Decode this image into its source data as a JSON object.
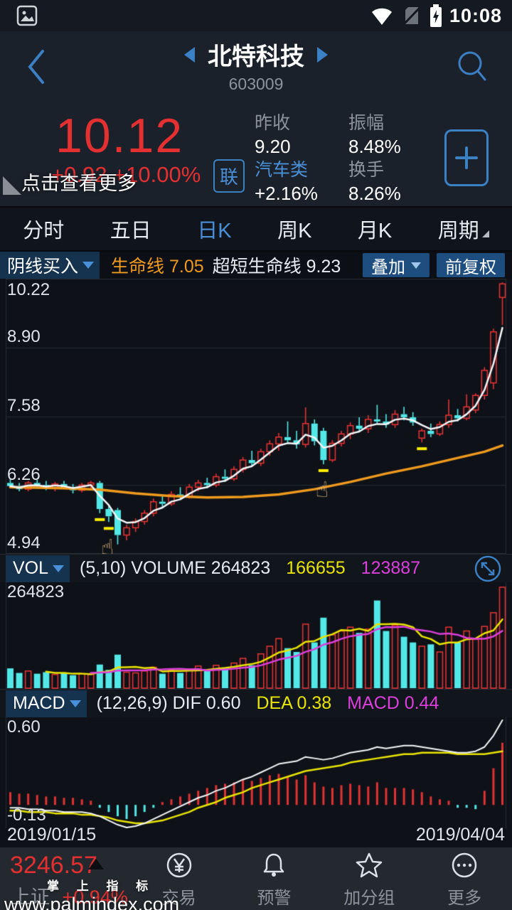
{
  "colors": {
    "up": "#e03232",
    "down": "#53e8e8",
    "orange": "#f09a1e",
    "white_line": "#f4f6f8",
    "yellow": "#e9e400",
    "magenta": "#dd3fdd",
    "grid": "#272d36",
    "signal": "#ffee00",
    "accent_blue": "#4a90d8",
    "price_red": "#e43030"
  },
  "status_bar": {
    "time": "10:08"
  },
  "header": {
    "title": "北特科技",
    "subtitle": "603009"
  },
  "quote": {
    "price": "10.12",
    "change_line": "+0.92 +10.00%",
    "overlay_hint": "点击查看更多",
    "badge": "联",
    "stats": [
      {
        "label": "昨收",
        "value": "9.20"
      },
      {
        "label": "振幅",
        "value": "8.48%"
      },
      {
        "label": "汽车类",
        "value": "+2.16%"
      },
      {
        "label": "换手",
        "value": "8.26%"
      }
    ]
  },
  "tabs": {
    "items": [
      {
        "label": "分时"
      },
      {
        "label": "五日"
      },
      {
        "label": "日K"
      },
      {
        "label": "周K"
      },
      {
        "label": "月K"
      },
      {
        "label": "周期"
      }
    ],
    "active_index": 2
  },
  "indicator_bar": {
    "selector": "阴线买入",
    "item1_label": "生命线",
    "item1_value": "7.05",
    "item2_label": "超短生命线",
    "item2_value": "9.23",
    "overlay_button": "叠加",
    "adjust_button": "前复权"
  },
  "kchart": {
    "y_labels": [
      "10.22",
      "8.90",
      "7.58",
      "6.26",
      "4.94"
    ]
  },
  "vol_panel": {
    "selector": "VOL",
    "params": "(5,10) VOLUME 264823",
    "ma5": "166655",
    "ma10": "123887",
    "y_label": "264823"
  },
  "macd_panel": {
    "selector": "MACD",
    "params": "(12,26,9) DIF 0.60",
    "dea": "DEA 0.38",
    "macd": "MACD 0.44",
    "y_top": "0.60",
    "y_bottom": "-0.13",
    "date_left": "2019/01/15",
    "date_right": "2019/04/04"
  },
  "bottom_nav": {
    "index_value": "3246.57",
    "index_name": "上证",
    "index_change": "+0.94%",
    "items": [
      {
        "label": "交易"
      },
      {
        "label": "预警"
      },
      {
        "label": "加分组"
      },
      {
        "label": "更多"
      }
    ]
  },
  "watermark": {
    "line1": "掌 上 指 标",
    "line2": "www.palmindex.com"
  },
  "chart_data": [
    {
      "type": "candlestick",
      "title": "日K",
      "y_range": [
        4.94,
        10.22
      ],
      "y_ticks": [
        10.22,
        8.9,
        7.58,
        6.26,
        4.94
      ],
      "date_start": "2019/01/15",
      "date_end": "2019/04/04",
      "candles": [
        [
          6.3,
          6.38,
          6.2,
          6.24
        ],
        [
          6.24,
          6.3,
          6.14,
          6.18
        ],
        [
          6.18,
          6.34,
          6.14,
          6.3
        ],
        [
          6.3,
          6.36,
          6.22,
          6.26
        ],
        [
          6.26,
          6.34,
          6.16,
          6.2
        ],
        [
          6.2,
          6.32,
          6.14,
          6.28
        ],
        [
          6.28,
          6.34,
          6.18,
          6.22
        ],
        [
          6.22,
          6.28,
          6.1,
          6.16
        ],
        [
          6.16,
          6.3,
          6.12,
          6.26
        ],
        [
          6.26,
          6.34,
          6.2,
          6.3
        ],
        [
          6.3,
          6.34,
          5.72,
          5.8
        ],
        [
          5.8,
          5.88,
          5.55,
          5.66
        ],
        [
          5.78,
          5.82,
          5.12,
          5.3
        ],
        [
          5.3,
          5.5,
          5.2,
          5.44
        ],
        [
          5.44,
          5.62,
          5.36,
          5.56
        ],
        [
          5.56,
          5.78,
          5.5,
          5.72
        ],
        [
          5.72,
          6.0,
          5.66,
          5.94
        ],
        [
          5.94,
          6.08,
          5.84,
          5.9
        ],
        [
          5.9,
          6.14,
          5.86,
          6.08
        ],
        [
          6.08,
          6.22,
          5.98,
          6.04
        ],
        [
          6.04,
          6.28,
          6.0,
          6.22
        ],
        [
          6.22,
          6.36,
          6.14,
          6.3
        ],
        [
          6.3,
          6.4,
          6.2,
          6.26
        ],
        [
          6.26,
          6.48,
          6.22,
          6.42
        ],
        [
          6.42,
          6.56,
          6.32,
          6.38
        ],
        [
          6.38,
          6.62,
          6.34,
          6.56
        ],
        [
          6.56,
          6.8,
          6.5,
          6.74
        ],
        [
          6.74,
          6.92,
          6.62,
          6.68
        ],
        [
          6.68,
          6.96,
          6.62,
          6.9
        ],
        [
          6.9,
          7.12,
          6.82,
          7.05
        ],
        [
          7.05,
          7.26,
          6.92,
          7.18
        ],
        [
          7.18,
          7.48,
          7.08,
          7.12
        ],
        [
          7.12,
          7.3,
          6.96,
          7.04
        ],
        [
          7.04,
          7.75,
          6.98,
          7.44
        ],
        [
          7.44,
          7.52,
          7.02,
          7.1
        ],
        [
          7.3,
          7.36,
          6.66,
          6.74
        ],
        [
          6.74,
          7.12,
          6.7,
          7.06
        ],
        [
          7.06,
          7.3,
          7.0,
          7.24
        ],
        [
          7.24,
          7.46,
          7.14,
          7.4
        ],
        [
          7.4,
          7.56,
          7.28,
          7.34
        ],
        [
          7.34,
          7.6,
          7.26,
          7.52
        ],
        [
          7.52,
          7.8,
          7.44,
          7.48
        ],
        [
          7.48,
          7.62,
          7.36,
          7.42
        ],
        [
          7.42,
          7.7,
          7.36,
          7.62
        ],
        [
          7.62,
          7.76,
          7.5,
          7.56
        ],
        [
          7.56,
          7.66,
          7.4,
          7.46
        ],
        [
          7.16,
          7.34,
          7.08,
          7.3
        ],
        [
          7.3,
          7.44,
          7.18,
          7.24
        ],
        [
          7.24,
          7.48,
          7.2,
          7.42
        ],
        [
          7.42,
          7.9,
          7.36,
          7.6
        ],
        [
          7.6,
          7.72,
          7.48,
          7.54
        ],
        [
          7.54,
          8.0,
          7.5,
          7.76
        ],
        [
          7.7,
          8.02,
          7.64,
          7.98
        ],
        [
          7.98,
          8.52,
          7.9,
          8.46
        ],
        [
          8.22,
          9.26,
          8.1,
          9.2
        ],
        [
          9.86,
          10.15,
          9.33,
          10.12
        ]
      ],
      "signals": {
        "dash_indices": [
          10,
          11,
          35,
          46
        ],
        "hand_indices": [
          11,
          35
        ]
      },
      "overlays": [
        {
          "name": "生命线",
          "color": "#f09a1e",
          "last_value": 7.05,
          "points": [
            [
              0,
              6.22
            ],
            [
              6,
              6.2
            ],
            [
              10,
              6.17
            ],
            [
              14,
              6.1
            ],
            [
              18,
              6.05
            ],
            [
              22,
              6.02
            ],
            [
              26,
              6.03
            ],
            [
              30,
              6.08
            ],
            [
              34,
              6.18
            ],
            [
              38,
              6.32
            ],
            [
              42,
              6.48
            ],
            [
              46,
              6.62
            ],
            [
              50,
              6.78
            ],
            [
              53,
              6.9
            ],
            [
              55,
              7.02
            ]
          ]
        },
        {
          "name": "超短生命线",
          "color": "#f4f6f8",
          "last_value": 9.23,
          "derived": "ema_close"
        }
      ]
    },
    {
      "type": "bar",
      "name": "VOLUME",
      "y_max": 264823,
      "values": [
        52000,
        40000,
        45000,
        38000,
        42000,
        36000,
        40000,
        34000,
        38000,
        36000,
        62000,
        48000,
        88000,
        42000,
        40000,
        45000,
        55000,
        38000,
        48000,
        40000,
        50000,
        58000,
        45000,
        60000,
        52000,
        66000,
        78000,
        60000,
        90000,
        110000,
        130000,
        105000,
        95000,
        168000,
        120000,
        185000,
        140000,
        150000,
        160000,
        145000,
        155000,
        230000,
        150000,
        165000,
        135000,
        120000,
        110000,
        115000,
        95000,
        160000,
        120000,
        150000,
        128000,
        162000,
        198000,
        264823
      ],
      "ma": [
        {
          "name": "MA5",
          "color": "#e9e400",
          "last_value": 166655
        },
        {
          "name": "MA10",
          "color": "#dd3fdd",
          "last_value": 123887
        }
      ]
    },
    {
      "type": "macd",
      "params": "(12,26,9)",
      "y_ticks": [
        0.6,
        -0.13
      ],
      "last": {
        "dif": 0.6,
        "dea": 0.38,
        "macd": 0.44
      },
      "dif": [
        -0.02,
        -0.02,
        -0.03,
        -0.03,
        -0.04,
        -0.04,
        -0.05,
        -0.05,
        -0.05,
        -0.06,
        -0.08,
        -0.11,
        -0.14,
        -0.16,
        -0.15,
        -0.13,
        -0.1,
        -0.07,
        -0.04,
        -0.01,
        0.02,
        0.05,
        0.07,
        0.1,
        0.12,
        0.15,
        0.18,
        0.2,
        0.23,
        0.26,
        0.29,
        0.3,
        0.31,
        0.34,
        0.33,
        0.32,
        0.33,
        0.35,
        0.37,
        0.38,
        0.39,
        0.41,
        0.4,
        0.41,
        0.42,
        0.42,
        0.41,
        0.4,
        0.39,
        0.38,
        0.37,
        0.37,
        0.38,
        0.41,
        0.49,
        0.6
      ],
      "dea": [
        -0.04,
        -0.04,
        -0.05,
        -0.05,
        -0.05,
        -0.06,
        -0.06,
        -0.06,
        -0.07,
        -0.07,
        -0.08,
        -0.09,
        -0.11,
        -0.12,
        -0.13,
        -0.13,
        -0.12,
        -0.11,
        -0.09,
        -0.07,
        -0.05,
        -0.02,
        0.0,
        0.02,
        0.05,
        0.07,
        0.09,
        0.12,
        0.14,
        0.16,
        0.18,
        0.2,
        0.22,
        0.24,
        0.25,
        0.26,
        0.27,
        0.28,
        0.3,
        0.31,
        0.32,
        0.33,
        0.34,
        0.35,
        0.36,
        0.36,
        0.37,
        0.37,
        0.37,
        0.37,
        0.36,
        0.36,
        0.36,
        0.36,
        0.37,
        0.38
      ],
      "hist": [
        0.09,
        0.08,
        0.08,
        0.07,
        0.06,
        0.06,
        0.05,
        0.05,
        0.04,
        0.03,
        -0.02,
        -0.05,
        -0.08,
        -0.1,
        -0.08,
        -0.05,
        -0.02,
        0.02,
        0.04,
        0.06,
        0.08,
        0.1,
        0.12,
        0.14,
        0.15,
        0.16,
        0.18,
        0.17,
        0.19,
        0.21,
        0.22,
        0.2,
        0.18,
        0.21,
        0.16,
        0.13,
        0.12,
        0.14,
        0.15,
        0.14,
        0.13,
        0.16,
        0.12,
        0.12,
        0.12,
        0.11,
        0.09,
        0.06,
        0.04,
        0.03,
        -0.02,
        -0.02,
        -0.03,
        0.1,
        0.26,
        0.44
      ]
    }
  ]
}
